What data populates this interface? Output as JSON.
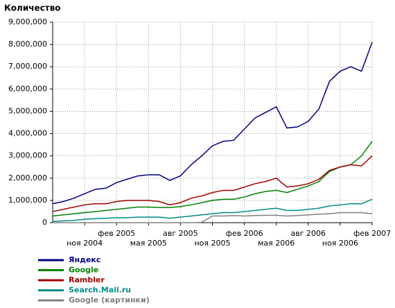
{
  "chart_data": {
    "type": "line",
    "y_label": "Количество",
    "categories": [
      null,
      null,
      null,
      "ноя 2004",
      null,
      null,
      "фев 2005",
      null,
      null,
      "мая 2005",
      null,
      null,
      "авг 2005",
      null,
      null,
      "ноя 2005",
      null,
      null,
      "фев 2006",
      null,
      null,
      "мая 2006",
      null,
      null,
      "авг 2006",
      null,
      null,
      "ноя 2006",
      null,
      null,
      "фев 2007"
    ],
    "ylim": [
      0,
      9000000
    ],
    "yticks": [
      0,
      {
        "value": 1000000,
        "label": "1,000,000"
      },
      {
        "value": 2000000,
        "label": "2,000,000"
      },
      {
        "value": 3000000,
        "label": "3,000,000"
      },
      {
        "value": 4000000,
        "label": "4,000,000"
      },
      {
        "value": 5000000,
        "label": "5,000,000"
      },
      {
        "value": 6000000,
        "label": "6,000,000"
      },
      {
        "value": 7000000,
        "label": "7,000,000"
      },
      {
        "value": 8000000,
        "label": "8,000,000"
      },
      {
        "value": 9000000,
        "label": "9,000,000"
      }
    ],
    "grid": true,
    "series": [
      {
        "name": "Яндекс",
        "color": "#000080",
        "values": [
          850000,
          950000,
          1100000,
          1300000,
          1500000,
          1550000,
          1800000,
          1950000,
          2100000,
          2150000,
          2150000,
          1900000,
          2100000,
          2600000,
          3000000,
          3450000,
          3650000,
          3700000,
          4200000,
          4700000,
          4950000,
          5200000,
          4250000,
          4300000,
          4550000,
          5100000,
          6350000,
          6800000,
          7000000,
          6800000,
          8100000
        ]
      },
      {
        "name": "Google",
        "color": "#008000",
        "values": [
          300000,
          350000,
          400000,
          450000,
          500000,
          550000,
          600000,
          650000,
          700000,
          700000,
          680000,
          680000,
          720000,
          800000,
          900000,
          1000000,
          1050000,
          1050000,
          1150000,
          1300000,
          1400000,
          1450000,
          1350000,
          1500000,
          1650000,
          1850000,
          2300000,
          2500000,
          2600000,
          3000000,
          3650000
        ]
      },
      {
        "name": "Rambler",
        "color": "#a00000",
        "values": [
          500000,
          600000,
          700000,
          800000,
          850000,
          850000,
          950000,
          1000000,
          1000000,
          1000000,
          950000,
          800000,
          900000,
          1100000,
          1200000,
          1350000,
          1450000,
          1450000,
          1600000,
          1750000,
          1850000,
          2000000,
          1600000,
          1650000,
          1750000,
          1950000,
          2350000,
          2500000,
          2600000,
          2550000,
          3000000
        ]
      },
      {
        "name": "Search.Mail.ru",
        "color": "#008b8b",
        "values": [
          50000,
          80000,
          100000,
          150000,
          180000,
          200000,
          220000,
          220000,
          250000,
          250000,
          250000,
          200000,
          250000,
          300000,
          350000,
          400000,
          450000,
          450000,
          500000,
          550000,
          600000,
          650000,
          550000,
          550000,
          600000,
          650000,
          750000,
          800000,
          850000,
          850000,
          1050000
        ]
      },
      {
        "name": "Google (картинки)",
        "color": "#808080",
        "values": [
          0,
          0,
          0,
          0,
          0,
          0,
          0,
          0,
          0,
          0,
          0,
          0,
          0,
          0,
          20000,
          300000,
          300000,
          320000,
          300000,
          320000,
          330000,
          330000,
          300000,
          320000,
          350000,
          380000,
          400000,
          450000,
          450000,
          450000,
          400000
        ]
      }
    ]
  }
}
